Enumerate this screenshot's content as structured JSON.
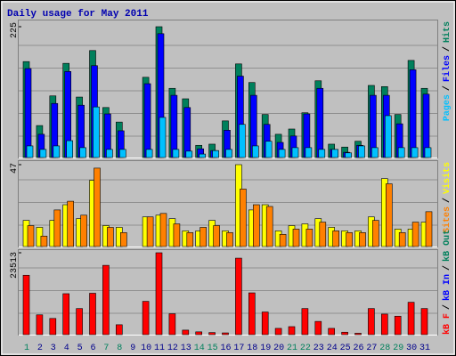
{
  "chart_data": [
    {
      "type": "bar",
      "title": "Daily usage for May 2011",
      "ylim": [
        0,
        225
      ],
      "yticks": [
        225
      ],
      "legend_separator": "/",
      "series": [
        {
          "name": "Pages",
          "color": "#00c0ff",
          "values": [
            20,
            14,
            20,
            29,
            17,
            87,
            14,
            14,
            0,
            14,
            69,
            14,
            11,
            6,
            12,
            14,
            57,
            20,
            28,
            14,
            17,
            17,
            14,
            14,
            8,
            20,
            17,
            72,
            17,
            17,
            17
          ]
        },
        {
          "name": "Files",
          "color": "#0000ff",
          "values": [
            153,
            40,
            93,
            148,
            90,
            158,
            75,
            46,
            0,
            127,
            213,
            107,
            86,
            15,
            12,
            47,
            140,
            107,
            57,
            26,
            37,
            75,
            119,
            14,
            9,
            21,
            107,
            107,
            58,
            151,
            109
          ]
        },
        {
          "name": "Hits",
          "color": "#00805c",
          "values": [
            165,
            55,
            106,
            162,
            104,
            184,
            86,
            61,
            0,
            138,
            225,
            119,
            101,
            21,
            23,
            63,
            161,
            129,
            74,
            40,
            49,
            77,
            132,
            23,
            18,
            28,
            124,
            122,
            74,
            167,
            119
          ]
        }
      ]
    },
    {
      "type": "bar",
      "ylim": [
        0,
        47
      ],
      "yticks": [
        47
      ],
      "legend_separator": "/",
      "series": [
        {
          "name": "Sites",
          "color": "#ff8000",
          "values": [
            12,
            6,
            21,
            26,
            18,
            45,
            11,
            8,
            0,
            17,
            19,
            13,
            8,
            11,
            12,
            8,
            33,
            24,
            23,
            7,
            10,
            10,
            14,
            9,
            8,
            8,
            15,
            36,
            8,
            14,
            20
          ]
        },
        {
          "name": "Visits",
          "color": "#ffff00",
          "values": [
            15,
            11,
            15,
            24,
            16,
            38,
            12,
            11,
            0,
            17,
            18,
            16,
            9,
            9,
            15,
            9,
            47,
            21,
            24,
            9,
            12,
            13,
            16,
            11,
            9,
            9,
            17,
            39,
            10,
            10,
            14
          ]
        }
      ]
    },
    {
      "type": "bar",
      "ylim": [
        0,
        23513
      ],
      "yticks": [
        23513
      ],
      "legend_separator": "/",
      "categories": [
        "1",
        "2",
        "3",
        "4",
        "5",
        "6",
        "7",
        "8",
        "9",
        "10",
        "11",
        "12",
        "13",
        "14",
        "15",
        "16",
        "17",
        "18",
        "19",
        "20",
        "21",
        "22",
        "23",
        "24",
        "25",
        "26",
        "27",
        "28",
        "29",
        "30",
        "31"
      ],
      "category_colors": [
        "#00805c",
        "#00008b",
        "#00008b",
        "#00008b",
        "#00008b",
        "#00008b",
        "#00805c",
        "#00805c",
        "#00008b",
        "#00008b",
        "#00008b",
        "#00008b",
        "#00008b",
        "#00805c",
        "#00805c",
        "#00008b",
        "#00008b",
        "#00008b",
        "#00008b",
        "#00008b",
        "#00805c",
        "#00805c",
        "#00008b",
        "#00008b",
        "#00008b",
        "#00008b",
        "#00008b",
        "#00805c",
        "#00805c",
        "#00008b",
        "#00008b"
      ],
      "series": [
        {
          "name": "kB F",
          "color": "#ff0000",
          "values": [
            17053,
            5684,
            4651,
            11761,
            7493,
            11886,
            19903,
            2842,
            0,
            9560,
            23513,
            6000,
            1300,
            800,
            600,
            500,
            21963,
            12000,
            6500,
            1800,
            2300,
            7500,
            3800,
            1800,
            700,
            400,
            7500,
            5900,
            5300,
            9300,
            7500
          ]
        },
        {
          "name": "kB In",
          "color": "#0000ff"
        },
        {
          "name": "kB Out",
          "color": "#00805c"
        }
      ]
    }
  ]
}
